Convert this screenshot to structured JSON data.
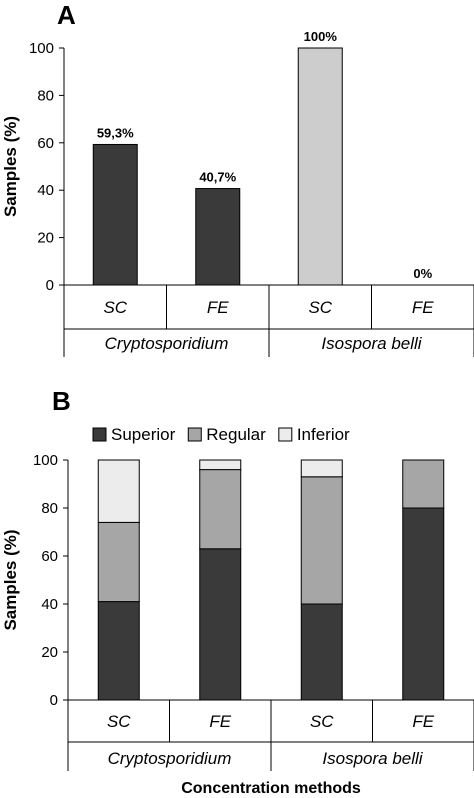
{
  "chart_data": [
    {
      "panel": "A",
      "type": "bar",
      "ylabel": "Samples (%)",
      "ylim": [
        0,
        100
      ],
      "yticks": [
        0,
        20,
        40,
        60,
        80,
        100
      ],
      "categories": [
        "SC",
        "FE",
        "SC",
        "FE"
      ],
      "groups": [
        "Cryptosporidium",
        "Isospora belli"
      ],
      "values": [
        59.3,
        40.7,
        100,
        0
      ],
      "data_labels": [
        "59,3%",
        "40,7%",
        "100%",
        "0%"
      ],
      "colors": [
        "#3a3a3a",
        "#3a3a3a",
        "#cdcdcd",
        "#cdcdcd"
      ]
    },
    {
      "panel": "B",
      "type": "bar",
      "stacked": true,
      "ylabel": "Samples (%)",
      "xlabel": "Concentration methods",
      "ylim": [
        0,
        100
      ],
      "yticks": [
        0,
        20,
        40,
        60,
        80,
        100
      ],
      "categories": [
        "SC",
        "FE",
        "SC",
        "FE"
      ],
      "groups": [
        "Cryptosporidium",
        "Isospora belli"
      ],
      "legend_position": "top",
      "series": [
        {
          "name": "Superior",
          "values": [
            41,
            63,
            40,
            80
          ],
          "color": "#3a3a3a"
        },
        {
          "name": "Regular",
          "values": [
            33,
            33,
            53,
            20
          ],
          "color": "#a6a6a6"
        },
        {
          "name": "Inferior",
          "values": [
            26,
            4,
            7,
            0
          ],
          "color": "#ececec"
        }
      ]
    }
  ]
}
